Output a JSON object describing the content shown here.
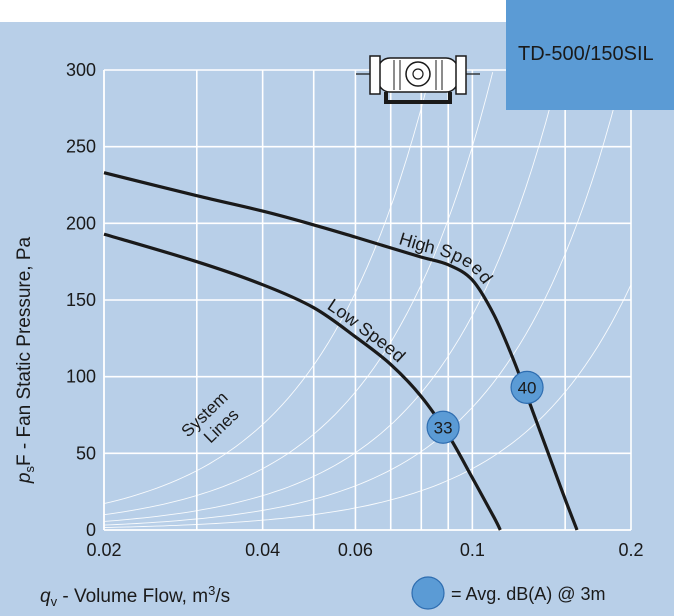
{
  "chart_data": {
    "type": "line",
    "model": "TD-500/150SIL",
    "xlabel_main": "q",
    "xlabel_sub": "v",
    "xlabel_rest": " - Volume Flow, m",
    "xlabel_sup": "3",
    "xlabel_end": "/s",
    "ylabel_main": "p",
    "ylabel_sub": "s",
    "ylabel_rest": "F - Fan Static Pressure, Pa",
    "x_scale": "log",
    "xlim": [
      0.02,
      0.2
    ],
    "ylim": [
      0,
      300
    ],
    "x_ticks": [
      {
        "value": 0.02,
        "label": "0.02"
      },
      {
        "value": 0.04,
        "label": "0.04"
      },
      {
        "value": 0.06,
        "label": "0.06"
      },
      {
        "value": 0.1,
        "label": "0.1"
      },
      {
        "value": 0.2,
        "label": "0.2"
      }
    ],
    "y_ticks": [
      {
        "value": 0,
        "label": "0"
      },
      {
        "value": 50,
        "label": "50"
      },
      {
        "value": 100,
        "label": "100"
      },
      {
        "value": 150,
        "label": "150"
      },
      {
        "value": 200,
        "label": "200"
      },
      {
        "value": 250,
        "label": "250"
      },
      {
        "value": 300,
        "label": "300"
      }
    ],
    "grid": true,
    "series": [
      {
        "name": "High Speed",
        "points": [
          [
            0.02,
            233
          ],
          [
            0.03,
            218
          ],
          [
            0.04,
            208
          ],
          [
            0.05,
            199
          ],
          [
            0.06,
            191
          ],
          [
            0.07,
            184
          ],
          [
            0.08,
            178
          ],
          [
            0.09,
            173
          ],
          [
            0.1,
            163
          ],
          [
            0.11,
            140
          ],
          [
            0.12,
            110
          ],
          [
            0.13,
            78
          ],
          [
            0.14,
            48
          ],
          [
            0.15,
            20
          ],
          [
            0.158,
            0
          ]
        ],
        "dba": {
          "x": 0.127,
          "y": 93,
          "label": "40"
        }
      },
      {
        "name": "Low Speed",
        "points": [
          [
            0.02,
            193
          ],
          [
            0.03,
            175
          ],
          [
            0.04,
            160
          ],
          [
            0.05,
            145
          ],
          [
            0.06,
            126
          ],
          [
            0.07,
            108
          ],
          [
            0.08,
            87
          ],
          [
            0.09,
            62
          ],
          [
            0.1,
            34
          ],
          [
            0.11,
            8
          ],
          [
            0.113,
            0
          ]
        ],
        "dba": {
          "x": 0.088,
          "y": 67,
          "label": "33"
        }
      }
    ],
    "system_lines_label": [
      "System",
      "Lines"
    ],
    "system_lines_k": [
      43000,
      25000,
      14000,
      8000,
      4000
    ],
    "legend_text": "= Avg. dB(A) @ 3m",
    "colors": {
      "background": "#b8cfe8",
      "title_box": "#5b9bd5",
      "grid": "#ffffff",
      "curve": "#1a1a1a",
      "marker": "#5b9bd5",
      "marker_stroke": "#2e6db0"
    }
  }
}
